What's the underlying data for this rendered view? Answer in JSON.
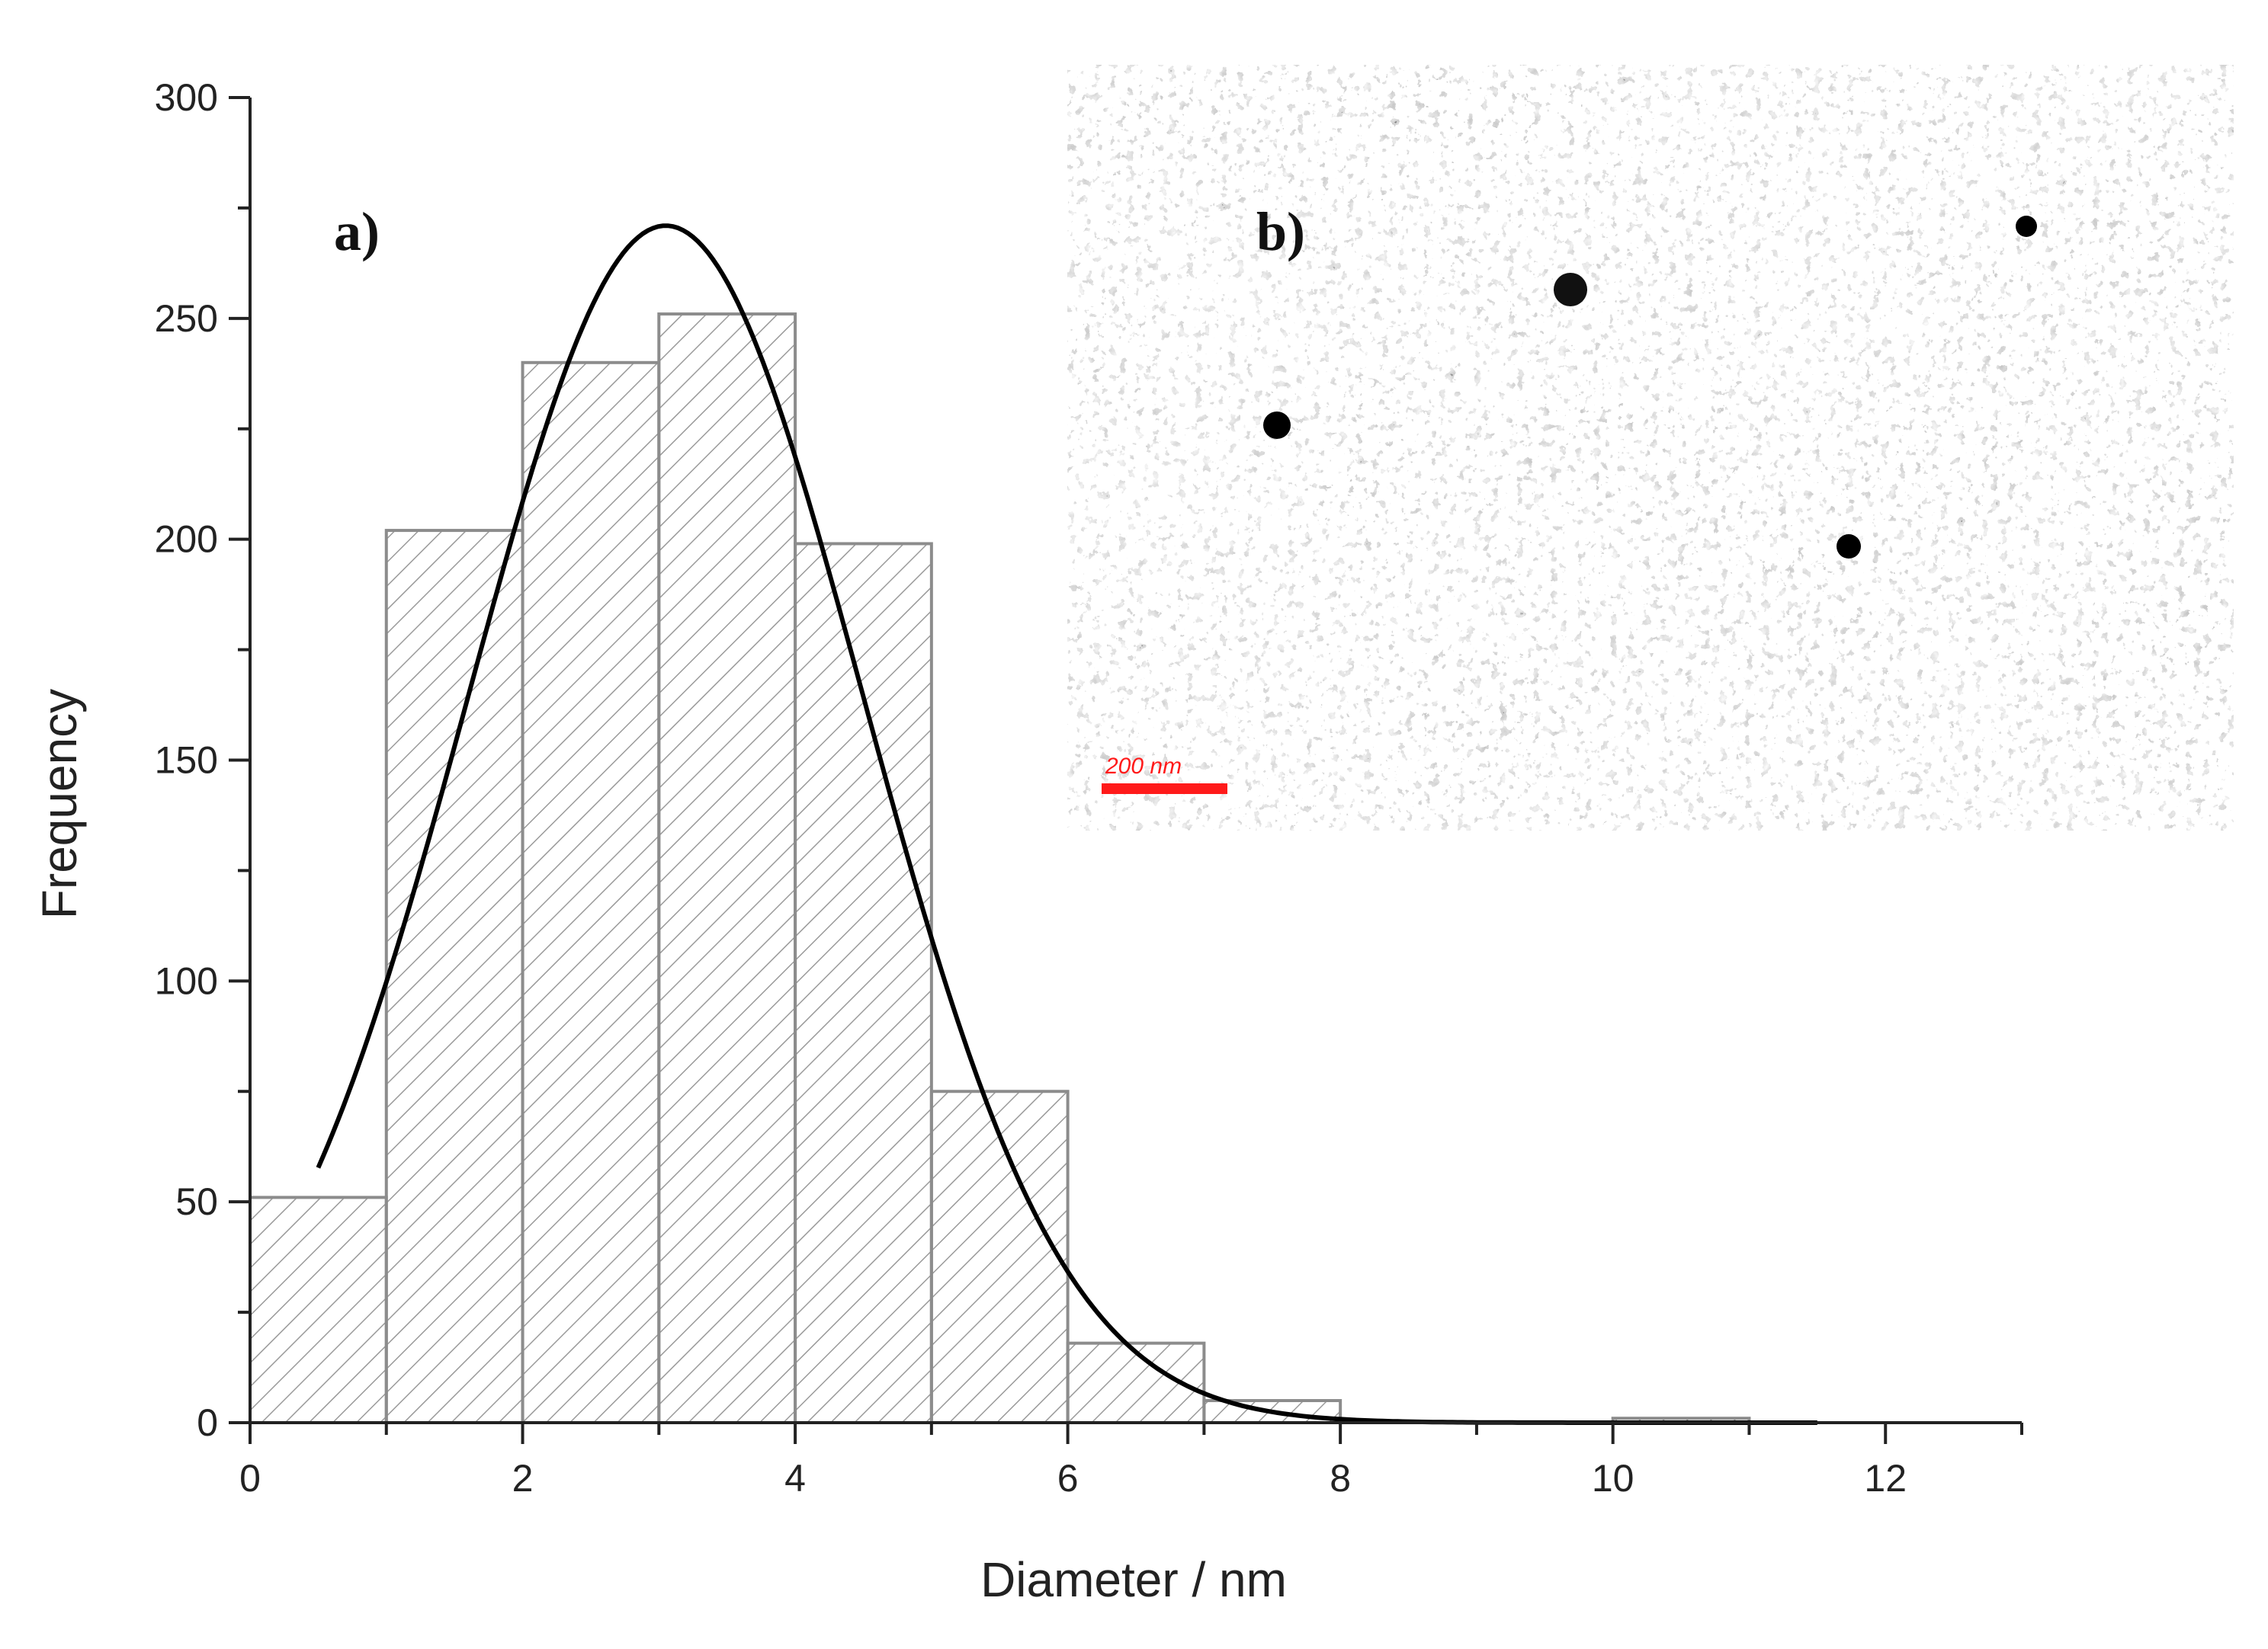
{
  "chart_data": {
    "type": "bar",
    "title": "",
    "xlabel": "Diameter / nm",
    "ylabel": "Frequency",
    "xlim": [
      0,
      13
    ],
    "ylim": [
      0,
      300
    ],
    "x_ticks": [
      0,
      2,
      4,
      6,
      8,
      10,
      12
    ],
    "y_ticks": [
      0,
      50,
      100,
      150,
      200,
      250,
      300
    ],
    "bins": [
      {
        "from": 0,
        "to": 1,
        "value": 51
      },
      {
        "from": 1,
        "to": 2,
        "value": 202
      },
      {
        "from": 2,
        "to": 3,
        "value": 240
      },
      {
        "from": 3,
        "to": 4,
        "value": 251
      },
      {
        "from": 4,
        "to": 5,
        "value": 199
      },
      {
        "from": 5,
        "to": 6,
        "value": 75
      },
      {
        "from": 6,
        "to": 7,
        "value": 18
      },
      {
        "from": 7,
        "to": 8,
        "value": 5
      },
      {
        "from": 8,
        "to": 9,
        "value": 0
      },
      {
        "from": 9,
        "to": 10,
        "value": 0
      },
      {
        "from": 10,
        "to": 11,
        "value": 1
      }
    ],
    "fit_curve": {
      "type": "gaussian",
      "peak_x": 3.05,
      "peak_y": 271,
      "sigma": 1.45,
      "x_range": [
        0.5,
        11.5
      ]
    },
    "bar_fill": "diagonal hatch",
    "bar_color": "#8c8c8c",
    "curve_color": "#000000",
    "grid": false,
    "annotations": {
      "panel_a": "a)",
      "panel_b": "b)"
    }
  },
  "inset": {
    "type": "micrograph",
    "scale_bar_label": "200 nm",
    "scale_bar_color": "#ff1a1a"
  }
}
